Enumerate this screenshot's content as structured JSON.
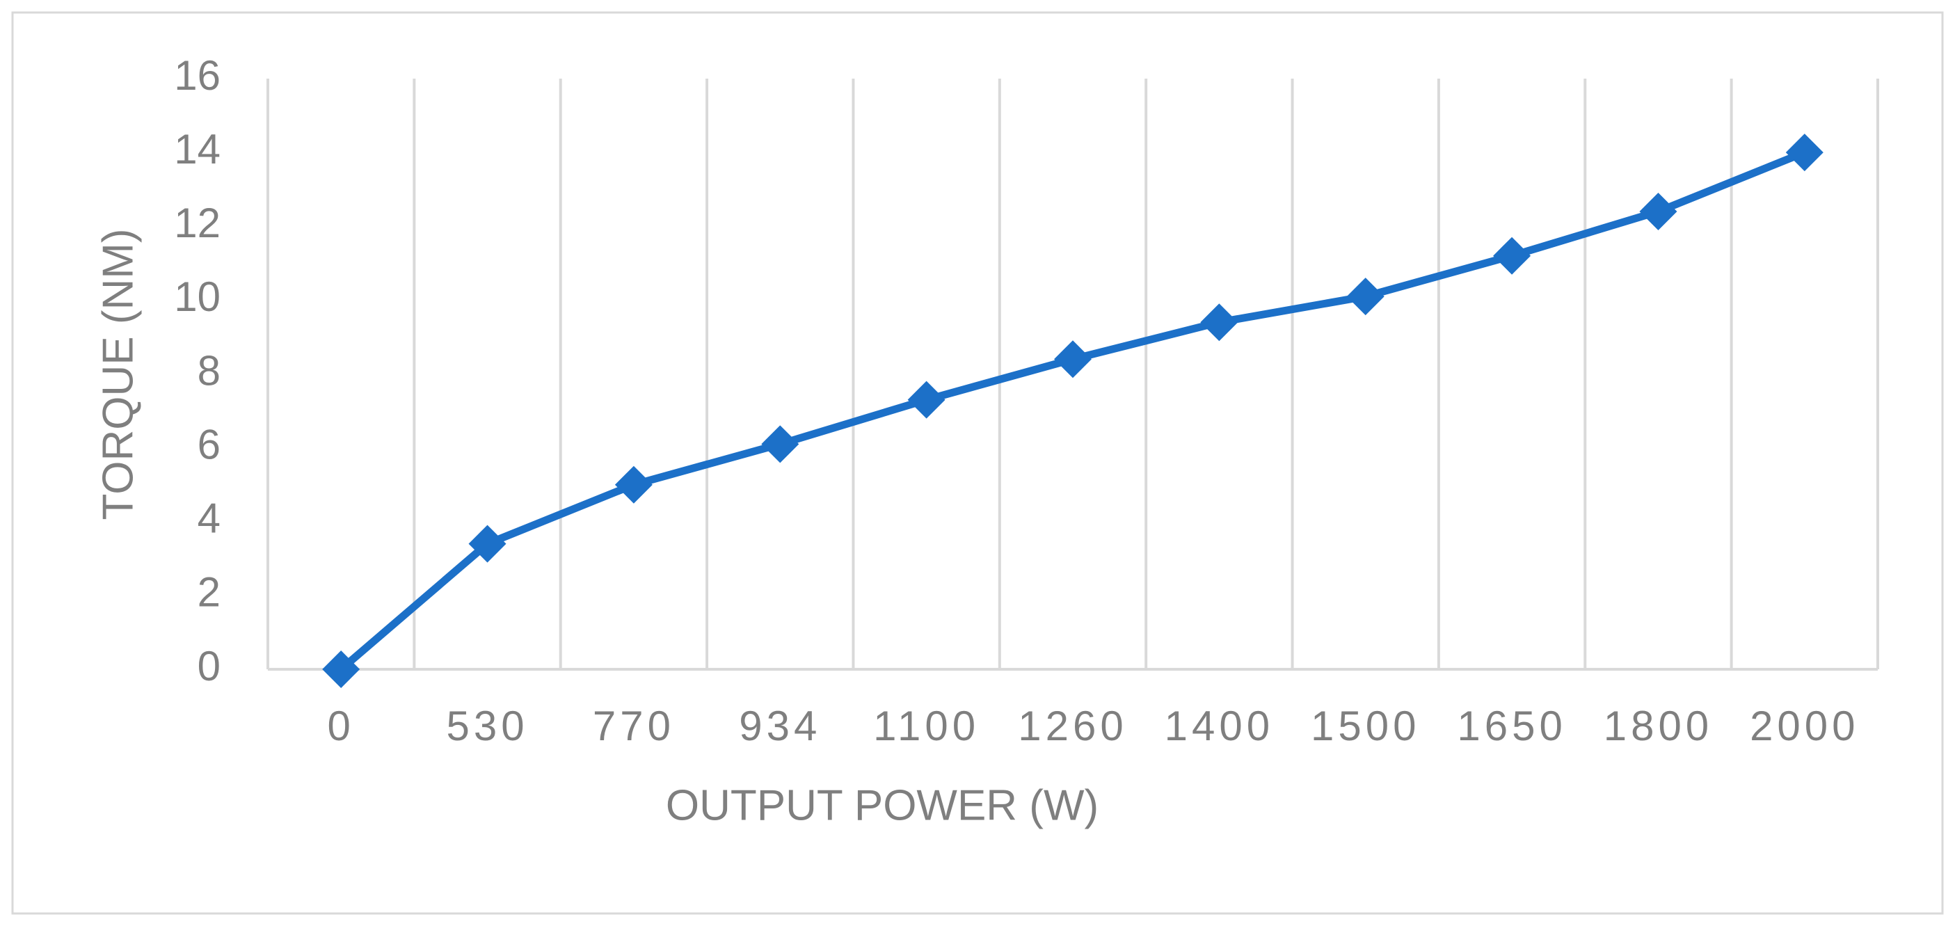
{
  "chart_data": {
    "type": "line",
    "x_label": "OUTPUT POWER (W)",
    "y_label": "TORQUE (NM)",
    "categories": [
      "0",
      "530",
      "770",
      "934",
      "1100",
      "1260",
      "1400",
      "1500",
      "1650",
      "1800",
      "2000"
    ],
    "series": [
      {
        "color": "#1c70c8",
        "values": [
          0,
          3.4,
          5.0,
          6.1,
          7.3,
          8.4,
          9.4,
          10.1,
          11.2,
          12.4,
          14.0
        ]
      }
    ],
    "ylim": [
      0,
      16
    ],
    "yticks": [
      0,
      2,
      4,
      6,
      8,
      10,
      12,
      14,
      16
    ],
    "grid": "x"
  }
}
